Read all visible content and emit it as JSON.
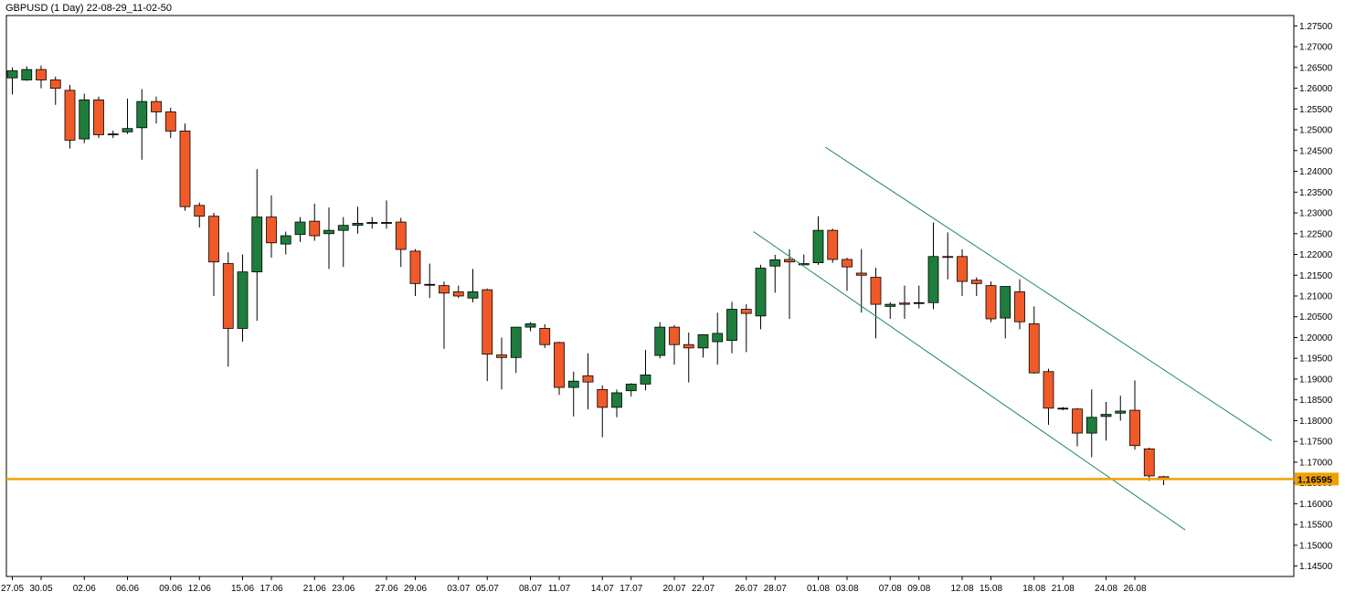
{
  "colors": {
    "background": "#ffffff",
    "axis": "#000000",
    "bull_candle": "#1e7d3c",
    "bear_candle": "#f05a28",
    "wick": "#000000",
    "channel_line": "#1f8a5c",
    "price_line": "#f0a000",
    "price_tag_bg": "#f0a000"
  },
  "chart_data": {
    "type": "candlestick",
    "title": "GBPUSD (1 Day) 22-08-29_11-02-50",
    "symbol": "GBPUSD",
    "timeframe": "1 Day",
    "ylim": [
      1.1425,
      1.2775
    ],
    "y_ticks": [
      1.145,
      1.15,
      1.155,
      1.16,
      1.165,
      1.17,
      1.175,
      1.18,
      1.185,
      1.19,
      1.195,
      1.2,
      1.205,
      1.21,
      1.215,
      1.22,
      1.225,
      1.23,
      1.235,
      1.24,
      1.245,
      1.25,
      1.255,
      1.26,
      1.265,
      1.27,
      1.275
    ],
    "y_tick_labels": [
      "1.14500",
      "1.15000",
      "1.15500",
      "1.16000",
      "1.16500",
      "1.17000",
      "1.17500",
      "1.18000",
      "1.18500",
      "1.19000",
      "1.19500",
      "1.20000",
      "1.20500",
      "1.21000",
      "1.21500",
      "1.22000",
      "1.22500",
      "1.23000",
      "1.23500",
      "1.24000",
      "1.24500",
      "1.25000",
      "1.25500",
      "1.26000",
      "1.26500",
      "1.27000",
      "1.27500"
    ],
    "x_labels": [
      {
        "index": 0,
        "text": "27.05"
      },
      {
        "index": 2,
        "text": "30.05"
      },
      {
        "index": 5,
        "text": "02.06"
      },
      {
        "index": 8,
        "text": "06.06"
      },
      {
        "index": 11,
        "text": "09.06"
      },
      {
        "index": 13,
        "text": "12.06"
      },
      {
        "index": 16,
        "text": "15.06"
      },
      {
        "index": 18,
        "text": "17.06"
      },
      {
        "index": 21,
        "text": "21.06"
      },
      {
        "index": 23,
        "text": "23.06"
      },
      {
        "index": 26,
        "text": "27.06"
      },
      {
        "index": 28,
        "text": "29.06"
      },
      {
        "index": 31,
        "text": "03.07"
      },
      {
        "index": 33,
        "text": "05.07"
      },
      {
        "index": 36,
        "text": "08.07"
      },
      {
        "index": 38,
        "text": "11.07"
      },
      {
        "index": 41,
        "text": "14.07"
      },
      {
        "index": 43,
        "text": "17.07"
      },
      {
        "index": 46,
        "text": "20.07"
      },
      {
        "index": 48,
        "text": "22.07"
      },
      {
        "index": 51,
        "text": "26.07"
      },
      {
        "index": 53,
        "text": "28.07"
      },
      {
        "index": 56,
        "text": "01.08"
      },
      {
        "index": 58,
        "text": "03.08"
      },
      {
        "index": 61,
        "text": "07.08"
      },
      {
        "index": 63,
        "text": "09.08"
      },
      {
        "index": 66,
        "text": "12.08"
      },
      {
        "index": 68,
        "text": "15.08"
      },
      {
        "index": 71,
        "text": "18.08"
      },
      {
        "index": 73,
        "text": "21.08"
      },
      {
        "index": 76,
        "text": "24.08"
      },
      {
        "index": 78,
        "text": "26.08"
      }
    ],
    "candles": [
      {
        "o": 1.2625,
        "h": 1.265,
        "l": 1.2585,
        "c": 1.2642
      },
      {
        "o": 1.262,
        "h": 1.2653,
        "l": 1.2618,
        "c": 1.2645
      },
      {
        "o": 1.2645,
        "h": 1.2655,
        "l": 1.26,
        "c": 1.262
      },
      {
        "o": 1.262,
        "h": 1.2628,
        "l": 1.256,
        "c": 1.26
      },
      {
        "o": 1.2595,
        "h": 1.2608,
        "l": 1.2455,
        "c": 1.2475
      },
      {
        "o": 1.2478,
        "h": 1.2587,
        "l": 1.2468,
        "c": 1.2572
      },
      {
        "o": 1.2572,
        "h": 1.258,
        "l": 1.248,
        "c": 1.2488
      },
      {
        "o": 1.2488,
        "h": 1.2498,
        "l": 1.248,
        "c": 1.249
      },
      {
        "o": 1.2495,
        "h": 1.2575,
        "l": 1.249,
        "c": 1.2503
      },
      {
        "o": 1.2505,
        "h": 1.2598,
        "l": 1.2428,
        "c": 1.2568
      },
      {
        "o": 1.2568,
        "h": 1.258,
        "l": 1.2515,
        "c": 1.2543
      },
      {
        "o": 1.2543,
        "h": 1.2553,
        "l": 1.248,
        "c": 1.2497
      },
      {
        "o": 1.2497,
        "h": 1.2515,
        "l": 1.2305,
        "c": 1.2315
      },
      {
        "o": 1.2318,
        "h": 1.2325,
        "l": 1.2265,
        "c": 1.2292
      },
      {
        "o": 1.2292,
        "h": 1.23,
        "l": 1.21,
        "c": 1.2182
      },
      {
        "o": 1.2178,
        "h": 1.2205,
        "l": 1.193,
        "c": 1.2022
      },
      {
        "o": 1.2022,
        "h": 1.22,
        "l": 1.199,
        "c": 1.2158
      },
      {
        "o": 1.2158,
        "h": 1.2405,
        "l": 1.204,
        "c": 1.229
      },
      {
        "o": 1.229,
        "h": 1.2342,
        "l": 1.2192,
        "c": 1.2228
      },
      {
        "o": 1.2225,
        "h": 1.2255,
        "l": 1.22,
        "c": 1.2245
      },
      {
        "o": 1.2248,
        "h": 1.229,
        "l": 1.223,
        "c": 1.2278
      },
      {
        "o": 1.228,
        "h": 1.2322,
        "l": 1.2233,
        "c": 1.2245
      },
      {
        "o": 1.225,
        "h": 1.2313,
        "l": 1.2165,
        "c": 1.2258
      },
      {
        "o": 1.2258,
        "h": 1.229,
        "l": 1.217,
        "c": 1.227
      },
      {
        "o": 1.227,
        "h": 1.2315,
        "l": 1.225,
        "c": 1.2275
      },
      {
        "o": 1.2277,
        "h": 1.229,
        "l": 1.2262,
        "c": 1.2277
      },
      {
        "o": 1.2277,
        "h": 1.233,
        "l": 1.2262,
        "c": 1.2277
      },
      {
        "o": 1.2278,
        "h": 1.2288,
        "l": 1.217,
        "c": 1.2212
      },
      {
        "o": 1.2208,
        "h": 1.2213,
        "l": 1.21,
        "c": 1.213
      },
      {
        "o": 1.2128,
        "h": 1.2178,
        "l": 1.2095,
        "c": 1.2127
      },
      {
        "o": 1.2125,
        "h": 1.2135,
        "l": 1.1973,
        "c": 1.2107
      },
      {
        "o": 1.211,
        "h": 1.2125,
        "l": 1.2095,
        "c": 1.21
      },
      {
        "o": 1.2095,
        "h": 1.2165,
        "l": 1.2085,
        "c": 1.211
      },
      {
        "o": 1.2115,
        "h": 1.2118,
        "l": 1.1895,
        "c": 1.196
      },
      {
        "o": 1.1958,
        "h": 1.2,
        "l": 1.1875,
        "c": 1.1952
      },
      {
        "o": 1.1952,
        "h": 1.2025,
        "l": 1.1915,
        "c": 1.2025
      },
      {
        "o": 1.2025,
        "h": 1.2037,
        "l": 1.2015,
        "c": 1.2033
      },
      {
        "o": 1.2022,
        "h": 1.2032,
        "l": 1.1975,
        "c": 1.1983
      },
      {
        "o": 1.1988,
        "h": 1.199,
        "l": 1.1862,
        "c": 1.188
      },
      {
        "o": 1.188,
        "h": 1.1918,
        "l": 1.181,
        "c": 1.1895
      },
      {
        "o": 1.1908,
        "h": 1.1962,
        "l": 1.1827,
        "c": 1.1893
      },
      {
        "o": 1.1875,
        "h": 1.1885,
        "l": 1.176,
        "c": 1.1832
      },
      {
        "o": 1.1832,
        "h": 1.1875,
        "l": 1.1808,
        "c": 1.1867
      },
      {
        "o": 1.1872,
        "h": 1.189,
        "l": 1.1858,
        "c": 1.1888
      },
      {
        "o": 1.1888,
        "h": 1.197,
        "l": 1.1873,
        "c": 1.191
      },
      {
        "o": 1.1957,
        "h": 1.2037,
        "l": 1.195,
        "c": 1.2025
      },
      {
        "o": 1.2025,
        "h": 1.203,
        "l": 1.1935,
        "c": 1.1983
      },
      {
        "o": 1.1983,
        "h": 1.2012,
        "l": 1.1892,
        "c": 1.1975
      },
      {
        "o": 1.1975,
        "h": 1.2008,
        "l": 1.1952,
        "c": 1.2007
      },
      {
        "o": 1.199,
        "h": 1.206,
        "l": 1.1935,
        "c": 1.201
      },
      {
        "o": 1.1993,
        "h": 1.2086,
        "l": 1.1962,
        "c": 1.2068
      },
      {
        "o": 1.2068,
        "h": 1.208,
        "l": 1.1965,
        "c": 1.2058
      },
      {
        "o": 1.2052,
        "h": 1.2175,
        "l": 1.202,
        "c": 1.2167
      },
      {
        "o": 1.2172,
        "h": 1.2199,
        "l": 1.2108,
        "c": 1.2187
      },
      {
        "o": 1.2188,
        "h": 1.2212,
        "l": 1.2045,
        "c": 1.2182
      },
      {
        "o": 1.2175,
        "h": 1.22,
        "l": 1.2175,
        "c": 1.2178
      },
      {
        "o": 1.218,
        "h": 1.2292,
        "l": 1.2175,
        "c": 1.2258
      },
      {
        "o": 1.2258,
        "h": 1.2262,
        "l": 1.218,
        "c": 1.2188
      },
      {
        "o": 1.2188,
        "h": 1.2192,
        "l": 1.2112,
        "c": 1.217
      },
      {
        "o": 1.2155,
        "h": 1.2213,
        "l": 1.206,
        "c": 1.215
      },
      {
        "o": 1.2145,
        "h": 1.2168,
        "l": 1.1998,
        "c": 1.208
      },
      {
        "o": 1.2075,
        "h": 1.2085,
        "l": 1.2045,
        "c": 1.208
      },
      {
        "o": 1.2083,
        "h": 1.2125,
        "l": 1.2045,
        "c": 1.208
      },
      {
        "o": 1.2084,
        "h": 1.2125,
        "l": 1.207,
        "c": 1.2083
      },
      {
        "o": 1.2084,
        "h": 1.2277,
        "l": 1.2068,
        "c": 1.2195
      },
      {
        "o": 1.2195,
        "h": 1.2253,
        "l": 1.214,
        "c": 1.2193
      },
      {
        "o": 1.2195,
        "h": 1.2212,
        "l": 1.21,
        "c": 1.2135
      },
      {
        "o": 1.2138,
        "h": 1.2145,
        "l": 1.21,
        "c": 1.213
      },
      {
        "o": 1.2125,
        "h": 1.2135,
        "l": 1.2037,
        "c": 1.2045
      },
      {
        "o": 1.2047,
        "h": 1.2122,
        "l": 1.1998,
        "c": 1.2123
      },
      {
        "o": 1.211,
        "h": 1.214,
        "l": 1.202,
        "c": 1.2038
      },
      {
        "o": 1.2033,
        "h": 1.2075,
        "l": 1.1913,
        "c": 1.1915
      },
      {
        "o": 1.1918,
        "h": 1.1925,
        "l": 1.179,
        "c": 1.183
      },
      {
        "o": 1.183,
        "h": 1.1833,
        "l": 1.1825,
        "c": 1.183
      },
      {
        "o": 1.1828,
        "h": 1.183,
        "l": 1.1738,
        "c": 1.177
      },
      {
        "o": 1.177,
        "h": 1.1875,
        "l": 1.1712,
        "c": 1.1808
      },
      {
        "o": 1.181,
        "h": 1.1845,
        "l": 1.1752,
        "c": 1.1815
      },
      {
        "o": 1.1818,
        "h": 1.186,
        "l": 1.18,
        "c": 1.1823
      },
      {
        "o": 1.1825,
        "h": 1.1897,
        "l": 1.173,
        "c": 1.174
      },
      {
        "o": 1.1732,
        "h": 1.1735,
        "l": 1.1655,
        "c": 1.1667
      },
      {
        "o": 1.1665,
        "h": 1.1667,
        "l": 1.1645,
        "c": 1.166
      }
    ],
    "channel_upper": [
      {
        "index": 56.5,
        "price": 1.2458
      },
      {
        "index": 87.5,
        "price": 1.1752
      }
    ],
    "channel_lower": [
      {
        "index": 51.5,
        "price": 1.2255
      },
      {
        "index": 81.5,
        "price": 1.1537
      }
    ],
    "current_price": 1.16595,
    "current_price_label": "1.16595"
  }
}
